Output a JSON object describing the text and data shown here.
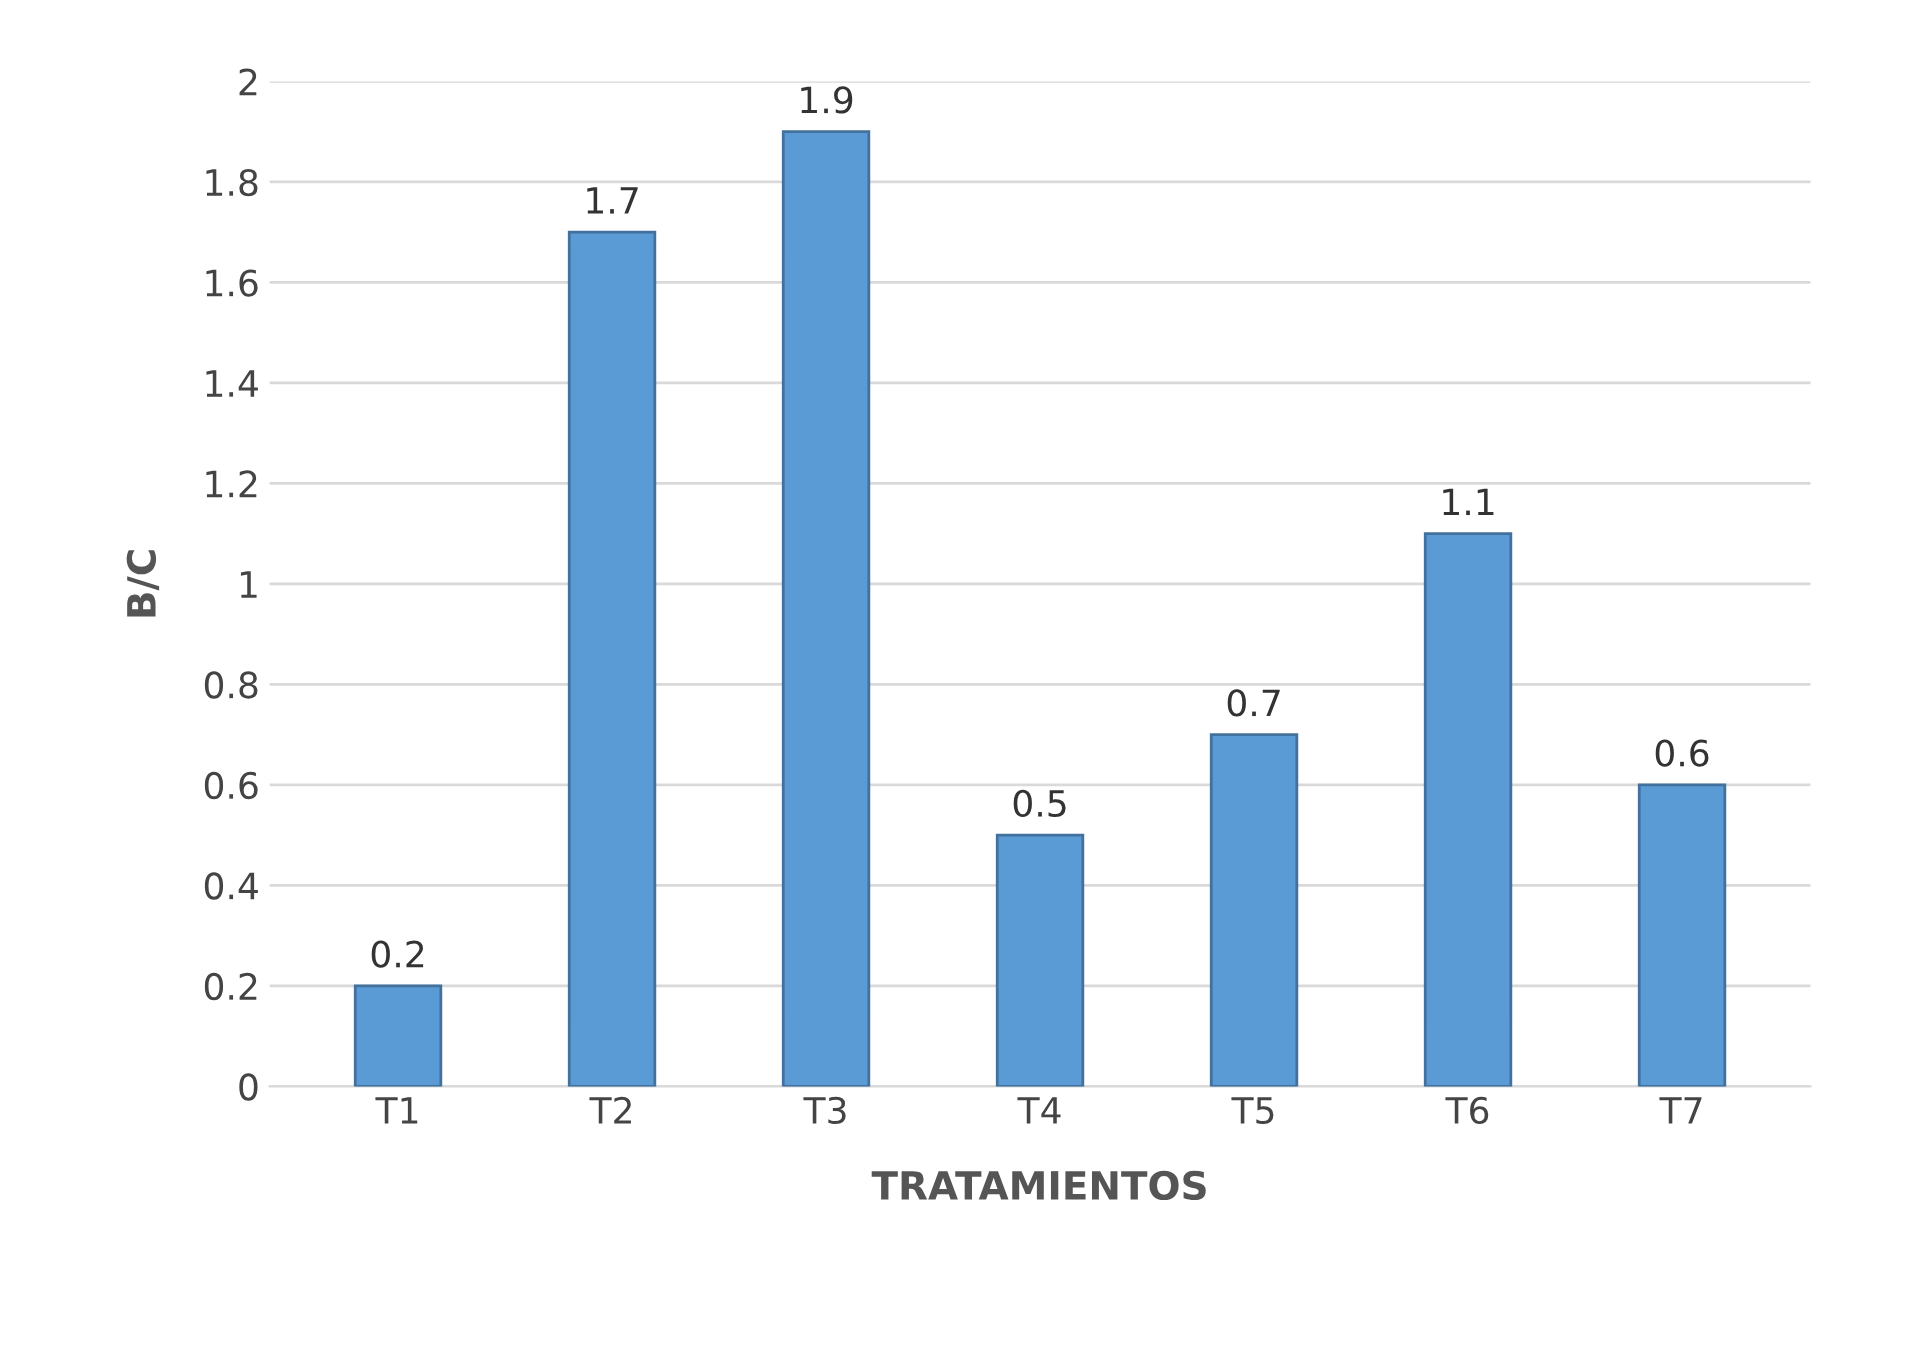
{
  "chart_data": {
    "type": "bar",
    "xlabel": "TRATAMIENTOS",
    "ylabel": "B/C",
    "categories": [
      "T1",
      "T2",
      "T3",
      "T4",
      "T5",
      "T6",
      "T7"
    ],
    "values": [
      0.2,
      1.7,
      1.9,
      0.5,
      0.7,
      1.1,
      0.6
    ],
    "color": "#5b9bd5",
    "ylim": [
      0,
      2
    ],
    "yticks": [
      0,
      0.2,
      0.4,
      0.6,
      0.8,
      1,
      1.2,
      1.4,
      1.6,
      1.8,
      2
    ],
    "grid": "y",
    "data_labels": true
  }
}
